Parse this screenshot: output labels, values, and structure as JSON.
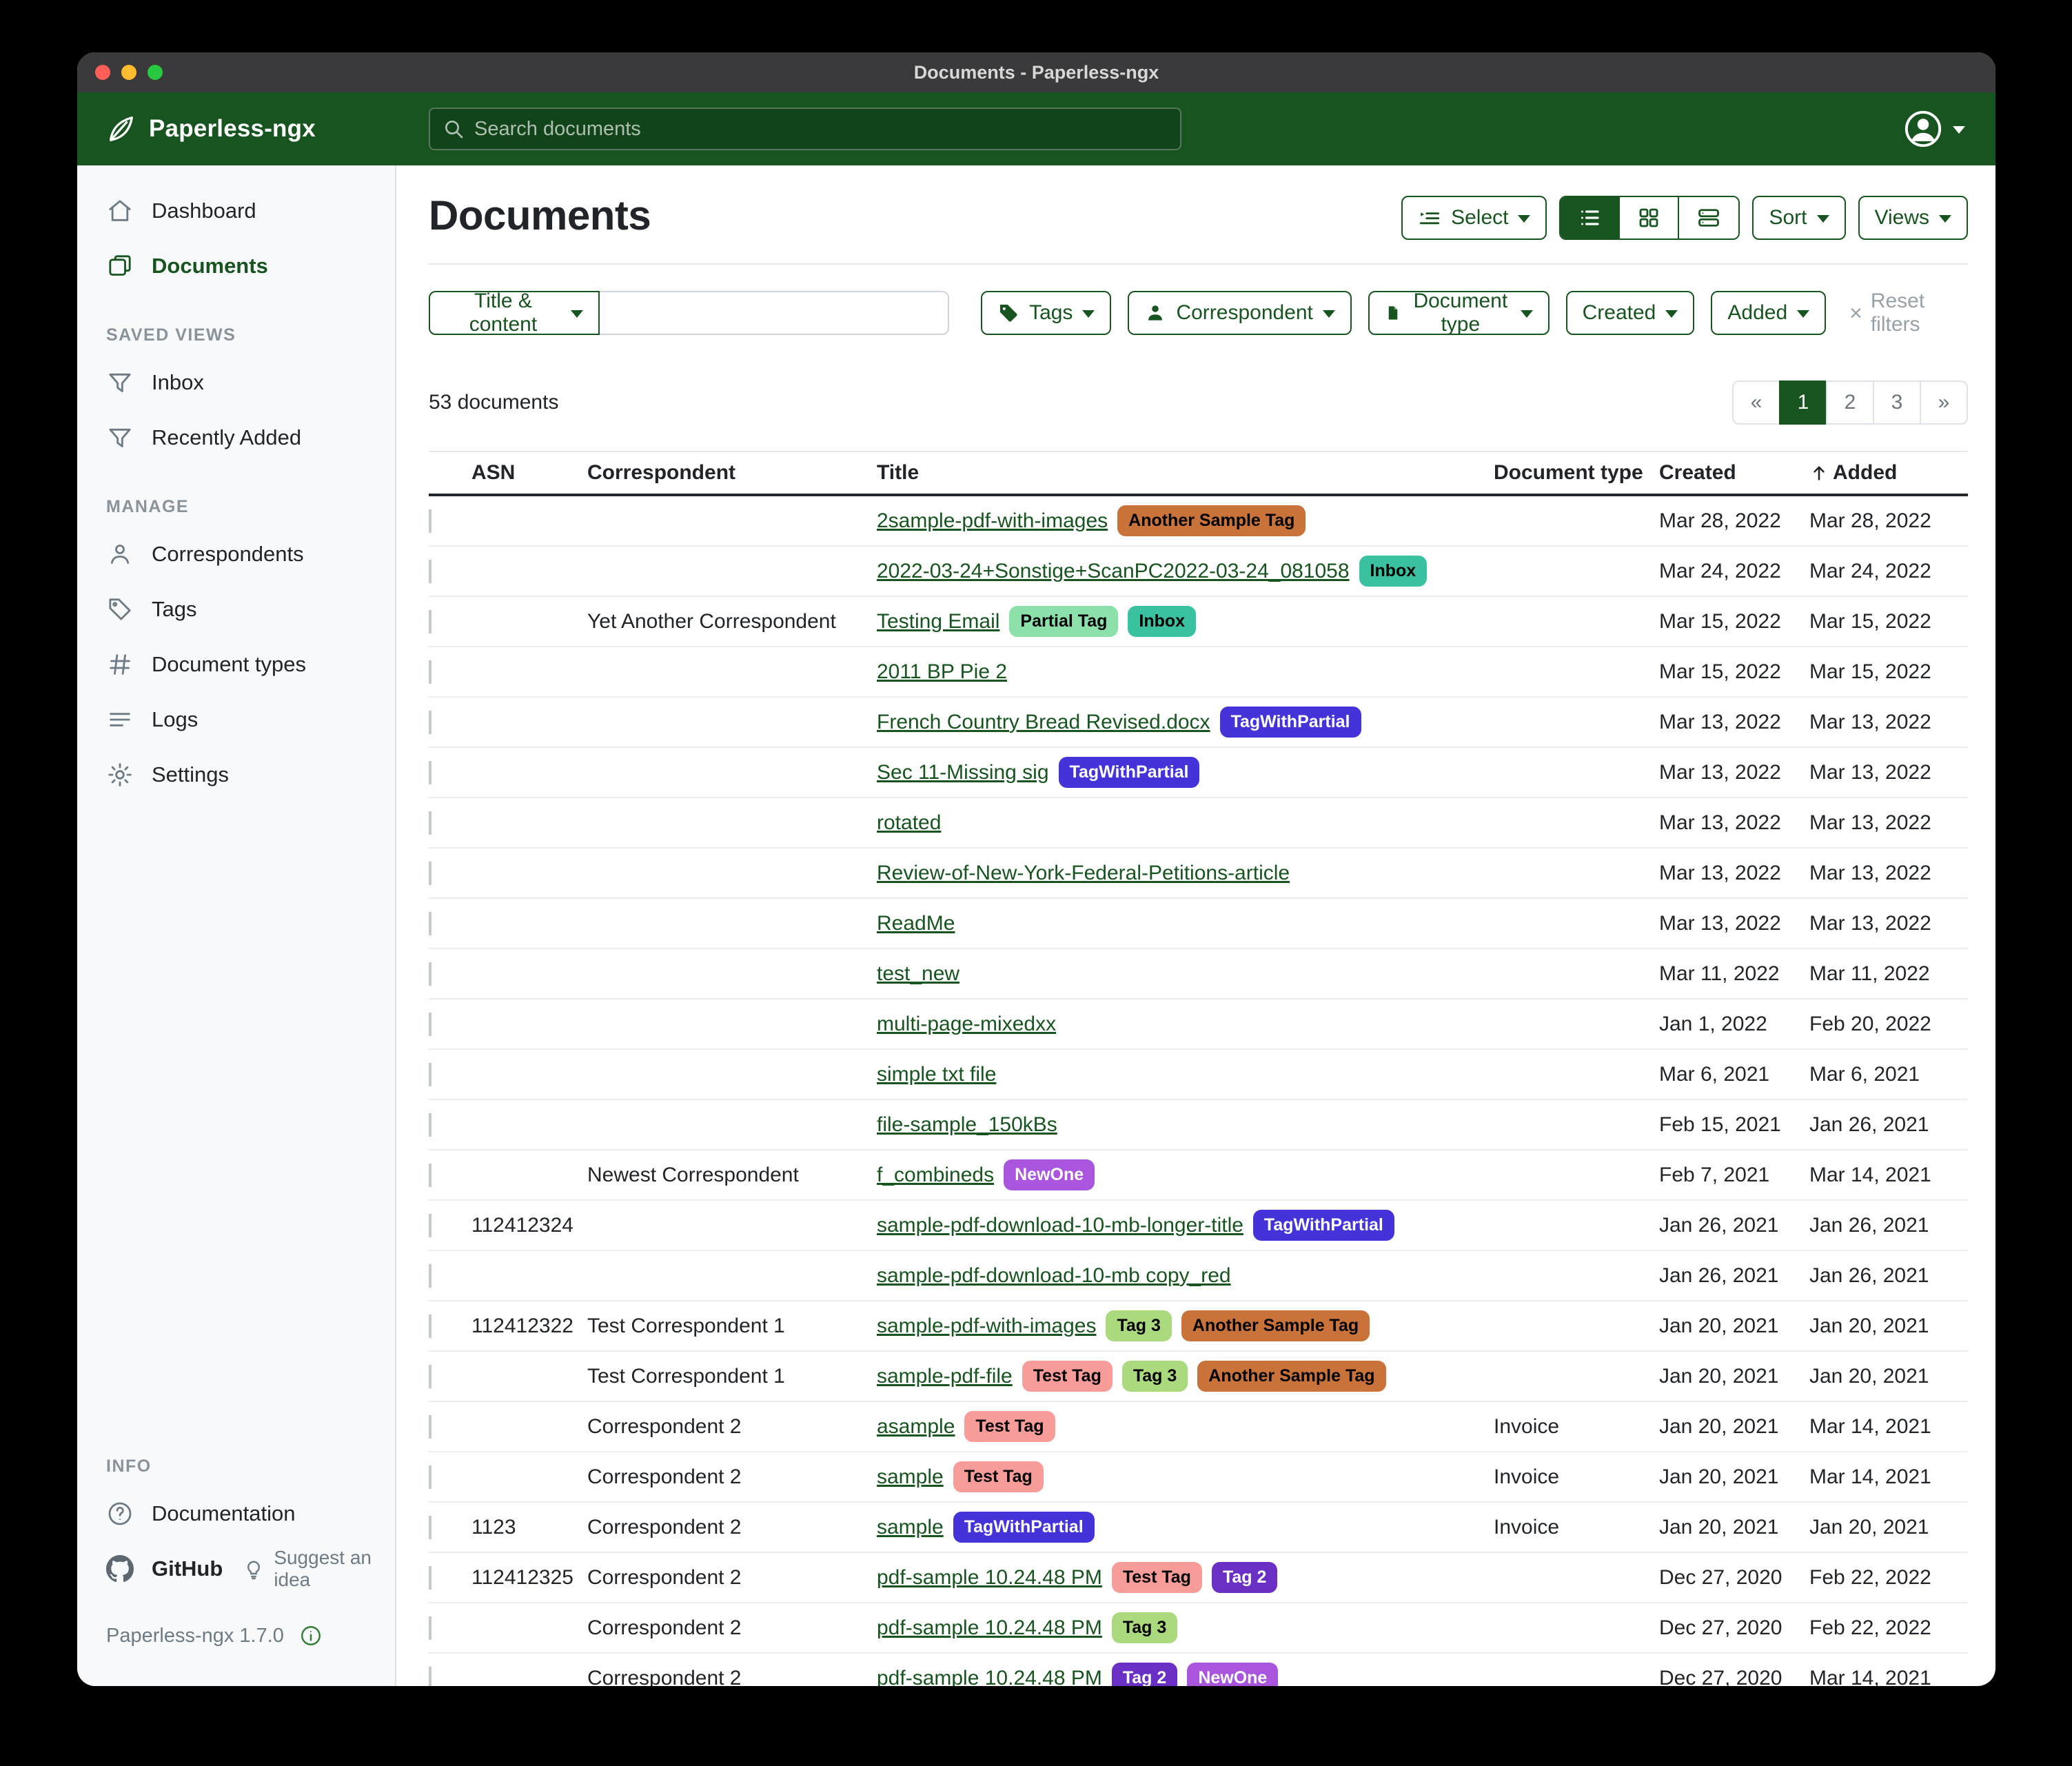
{
  "titlebar": {
    "title": "Documents - Paperless-ngx"
  },
  "navbar": {
    "brand": "Paperless-ngx",
    "search_placeholder": "Search documents",
    "accent_color": "#17541f"
  },
  "sidebar": {
    "sections": [
      {
        "heading": "",
        "items": [
          {
            "label": "Dashboard",
            "icon": "home-icon",
            "active": false
          },
          {
            "label": "Documents",
            "icon": "documents-icon",
            "active": true
          }
        ]
      },
      {
        "heading": "SAVED VIEWS",
        "items": [
          {
            "label": "Inbox",
            "icon": "filter-icon",
            "active": false
          },
          {
            "label": "Recently Added",
            "icon": "filter-icon",
            "active": false
          }
        ]
      },
      {
        "heading": "MANAGE",
        "items": [
          {
            "label": "Correspondents",
            "icon": "person-icon",
            "active": false
          },
          {
            "label": "Tags",
            "icon": "tag-icon",
            "active": false
          },
          {
            "label": "Document types",
            "icon": "hash-icon",
            "active": false
          },
          {
            "label": "Logs",
            "icon": "logs-icon",
            "active": false
          },
          {
            "label": "Settings",
            "icon": "gear-icon",
            "active": false
          }
        ]
      }
    ],
    "info_heading": "INFO",
    "documentation_label": "Documentation",
    "github_label": "GitHub",
    "suggest_label": "Suggest an idea",
    "version": "Paperless-ngx 1.7.0"
  },
  "toolbar": {
    "select_label": "Select",
    "sort_label": "Sort",
    "views_label": "Views"
  },
  "filters": {
    "field_selector_label": "Title & content",
    "search_value": "",
    "buttons": [
      {
        "label": "Tags",
        "icon": "tag-icon"
      },
      {
        "label": "Correspondent",
        "icon": "person-icon"
      },
      {
        "label": "Document type",
        "icon": "file-icon"
      },
      {
        "label": "Created",
        "icon": ""
      },
      {
        "label": "Added",
        "icon": ""
      }
    ],
    "reset_label": "Reset filters"
  },
  "status": {
    "count_text": "53 documents"
  },
  "pagination": {
    "prev": "«",
    "pages": [
      "1",
      "2",
      "3"
    ],
    "active_page": "1",
    "next": "»"
  },
  "table": {
    "columns": {
      "asn": "ASN",
      "correspondent": "Correspondent",
      "title": "Title",
      "doctype": "Document type",
      "created": "Created",
      "added": "Added"
    },
    "sorted_column": "added",
    "rows": [
      {
        "asn": "",
        "correspondent": "",
        "title": "2sample-pdf-with-images",
        "tags": [
          {
            "label": "Another Sample Tag",
            "bg": "#c9733b",
            "fg": "#000000"
          }
        ],
        "doctype": "",
        "created": "Mar 28, 2022",
        "added": "Mar 28, 2022"
      },
      {
        "asn": "",
        "correspondent": "",
        "title": "2022-03-24+Sonstige+ScanPC2022-03-24_081058",
        "tags": [
          {
            "label": "Inbox",
            "bg": "#3ac2a0",
            "fg": "#000000"
          }
        ],
        "doctype": "",
        "created": "Mar 24, 2022",
        "added": "Mar 24, 2022"
      },
      {
        "asn": "",
        "correspondent": "Yet Another Correspondent",
        "title": "Testing Email",
        "tags": [
          {
            "label": "Partial Tag",
            "bg": "#8ce0aa",
            "fg": "#000000"
          },
          {
            "label": "Inbox",
            "bg": "#3ac2a0",
            "fg": "#000000"
          }
        ],
        "doctype": "",
        "created": "Mar 15, 2022",
        "added": "Mar 15, 2022"
      },
      {
        "asn": "",
        "correspondent": "",
        "title": "2011 BP Pie 2",
        "tags": [],
        "doctype": "",
        "created": "Mar 15, 2022",
        "added": "Mar 15, 2022"
      },
      {
        "asn": "",
        "correspondent": "",
        "title": "French Country Bread Revised.docx",
        "tags": [
          {
            "label": "TagWithPartial",
            "bg": "#4433d9",
            "fg": "#ffffff"
          }
        ],
        "doctype": "",
        "created": "Mar 13, 2022",
        "added": "Mar 13, 2022"
      },
      {
        "asn": "",
        "correspondent": "",
        "title": "Sec 11-Missing sig",
        "tags": [
          {
            "label": "TagWithPartial",
            "bg": "#4433d9",
            "fg": "#ffffff"
          }
        ],
        "doctype": "",
        "created": "Mar 13, 2022",
        "added": "Mar 13, 2022"
      },
      {
        "asn": "",
        "correspondent": "",
        "title": "rotated",
        "tags": [],
        "doctype": "",
        "created": "Mar 13, 2022",
        "added": "Mar 13, 2022"
      },
      {
        "asn": "",
        "correspondent": "",
        "title": "Review-of-New-York-Federal-Petitions-article",
        "tags": [],
        "doctype": "",
        "created": "Mar 13, 2022",
        "added": "Mar 13, 2022"
      },
      {
        "asn": "",
        "correspondent": "",
        "title": "ReadMe",
        "tags": [],
        "doctype": "",
        "created": "Mar 13, 2022",
        "added": "Mar 13, 2022"
      },
      {
        "asn": "",
        "correspondent": "",
        "title": "test_new",
        "tags": [],
        "doctype": "",
        "created": "Mar 11, 2022",
        "added": "Mar 11, 2022"
      },
      {
        "asn": "",
        "correspondent": "",
        "title": "multi-page-mixedxx",
        "tags": [],
        "doctype": "",
        "created": "Jan 1, 2022",
        "added": "Feb 20, 2022"
      },
      {
        "asn": "",
        "correspondent": "",
        "title": "simple txt file",
        "tags": [],
        "doctype": "",
        "created": "Mar 6, 2021",
        "added": "Mar 6, 2021"
      },
      {
        "asn": "",
        "correspondent": "",
        "title": "file-sample_150kBs",
        "tags": [],
        "doctype": "",
        "created": "Feb 15, 2021",
        "added": "Jan 26, 2021"
      },
      {
        "asn": "",
        "correspondent": "Newest Correspondent",
        "title": "f_combineds",
        "tags": [
          {
            "label": "NewOne",
            "bg": "#a955dd",
            "fg": "#ffffff"
          }
        ],
        "doctype": "",
        "created": "Feb 7, 2021",
        "added": "Mar 14, 2021"
      },
      {
        "asn": "112412324",
        "correspondent": "",
        "title": "sample-pdf-download-10-mb-longer-title",
        "tags": [
          {
            "label": "TagWithPartial",
            "bg": "#4433d9",
            "fg": "#ffffff"
          }
        ],
        "doctype": "",
        "created": "Jan 26, 2021",
        "added": "Jan 26, 2021"
      },
      {
        "asn": "",
        "correspondent": "",
        "title": "sample-pdf-download-10-mb copy_red",
        "tags": [],
        "doctype": "",
        "created": "Jan 26, 2021",
        "added": "Jan 26, 2021"
      },
      {
        "asn": "112412322",
        "correspondent": "Test Correspondent 1",
        "title": "sample-pdf-with-images",
        "tags": [
          {
            "label": "Tag 3",
            "bg": "#abd97d",
            "fg": "#000000"
          },
          {
            "label": "Another Sample Tag",
            "bg": "#c9733b",
            "fg": "#000000"
          }
        ],
        "doctype": "",
        "created": "Jan 20, 2021",
        "added": "Jan 20, 2021"
      },
      {
        "asn": "",
        "correspondent": "Test Correspondent 1",
        "title": "sample-pdf-file",
        "tags": [
          {
            "label": "Test Tag",
            "bg": "#f79c98",
            "fg": "#000000"
          },
          {
            "label": "Tag 3",
            "bg": "#abd97d",
            "fg": "#000000"
          },
          {
            "label": "Another Sample Tag",
            "bg": "#c9733b",
            "fg": "#000000"
          }
        ],
        "doctype": "",
        "created": "Jan 20, 2021",
        "added": "Jan 20, 2021"
      },
      {
        "asn": "",
        "correspondent": "Correspondent 2",
        "title": "asample",
        "tags": [
          {
            "label": "Test Tag",
            "bg": "#f79c98",
            "fg": "#000000"
          }
        ],
        "doctype": "Invoice",
        "created": "Jan 20, 2021",
        "added": "Mar 14, 2021"
      },
      {
        "asn": "",
        "correspondent": "Correspondent 2",
        "title": "sample",
        "tags": [
          {
            "label": "Test Tag",
            "bg": "#f79c98",
            "fg": "#000000"
          }
        ],
        "doctype": "Invoice",
        "created": "Jan 20, 2021",
        "added": "Mar 14, 2021"
      },
      {
        "asn": "1123",
        "correspondent": "Correspondent 2",
        "title": "sample",
        "tags": [
          {
            "label": "TagWithPartial",
            "bg": "#4433d9",
            "fg": "#ffffff"
          }
        ],
        "doctype": "Invoice",
        "created": "Jan 20, 2021",
        "added": "Jan 20, 2021"
      },
      {
        "asn": "112412325",
        "correspondent": "Correspondent 2",
        "title": "pdf-sample 10.24.48 PM",
        "tags": [
          {
            "label": "Test Tag",
            "bg": "#f79c98",
            "fg": "#000000"
          },
          {
            "label": "Tag 2",
            "bg": "#6a2fc5",
            "fg": "#ffffff"
          }
        ],
        "doctype": "",
        "created": "Dec 27, 2020",
        "added": "Feb 22, 2022"
      },
      {
        "asn": "",
        "correspondent": "Correspondent 2",
        "title": "pdf-sample 10.24.48 PM",
        "tags": [
          {
            "label": "Tag 3",
            "bg": "#abd97d",
            "fg": "#000000"
          }
        ],
        "doctype": "",
        "created": "Dec 27, 2020",
        "added": "Feb 22, 2022"
      },
      {
        "asn": "",
        "correspondent": "Correspondent 2",
        "title": "pdf-sample 10.24.48 PM",
        "tags": [
          {
            "label": "Tag 2",
            "bg": "#6a2fc5",
            "fg": "#ffffff"
          },
          {
            "label": "NewOne",
            "bg": "#a955dd",
            "fg": "#ffffff"
          }
        ],
        "doctype": "",
        "created": "Dec 27, 2020",
        "added": "Mar 14, 2021"
      }
    ]
  }
}
